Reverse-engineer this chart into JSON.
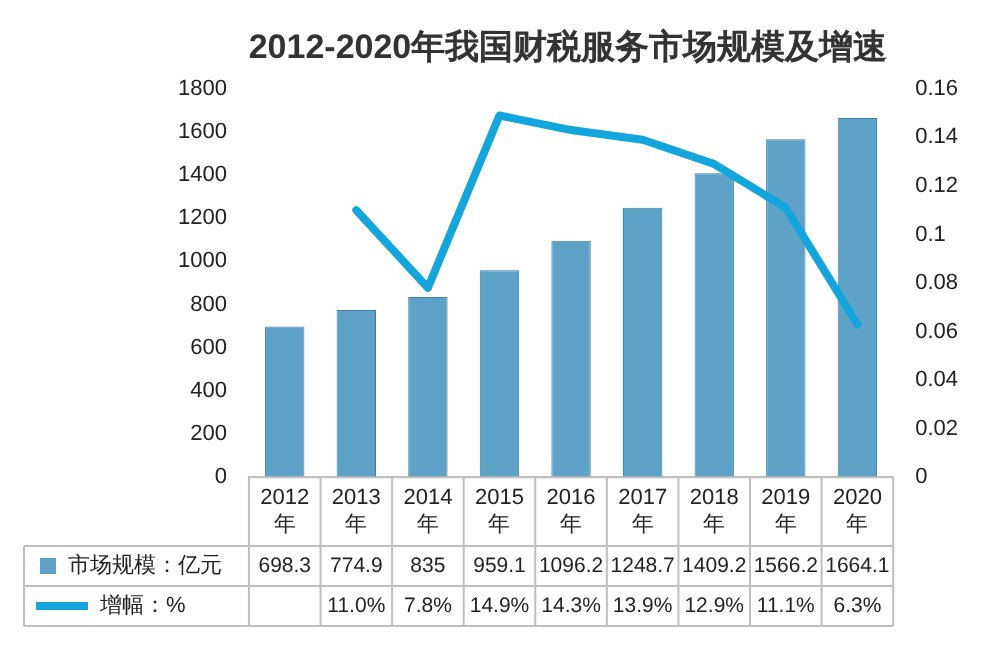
{
  "chart_data": {
    "type": "bar",
    "title": "2012-2020年我国财税服务市场规模及增速",
    "categories": [
      "2012年",
      "2013年",
      "2014年",
      "2015年",
      "2016年",
      "2017年",
      "2018年",
      "2019年",
      "2020年"
    ],
    "series": [
      {
        "name": "市场规模：亿元",
        "color": "#5fa2c8",
        "values": [
          698.3,
          774.9,
          835,
          959.1,
          1096.2,
          1248.7,
          1409.2,
          1566.2,
          1664.1
        ],
        "value_labels": [
          "698.3",
          "774.9",
          "835",
          "959.1",
          "1096.2",
          "1248.7",
          "1409.2",
          "1566.2",
          "1664.1"
        ]
      },
      {
        "name": "增幅：%",
        "type": "line",
        "axis": "y2",
        "color": "#14a5dc",
        "values": [
          null,
          0.11,
          0.078,
          0.149,
          0.143,
          0.139,
          0.129,
          0.111,
          0.063
        ],
        "value_labels": [
          null,
          "11.0%",
          "7.8%",
          "14.9%",
          "14.3%",
          "13.9%",
          "12.9%",
          "11.1%",
          "6.3%"
        ]
      }
    ],
    "ylim": [
      0,
      1800
    ],
    "yticks": [
      0,
      200,
      400,
      600,
      800,
      1000,
      1200,
      1400,
      1600,
      1800
    ],
    "y2lim": [
      0,
      0.16
    ],
    "y2ticks": [
      0,
      0.02,
      0.04,
      0.06,
      0.08,
      0.1,
      0.12,
      0.14,
      0.16
    ],
    "grid": false,
    "legend": "bottom",
    "marker": "none",
    "line_style": "solid"
  }
}
